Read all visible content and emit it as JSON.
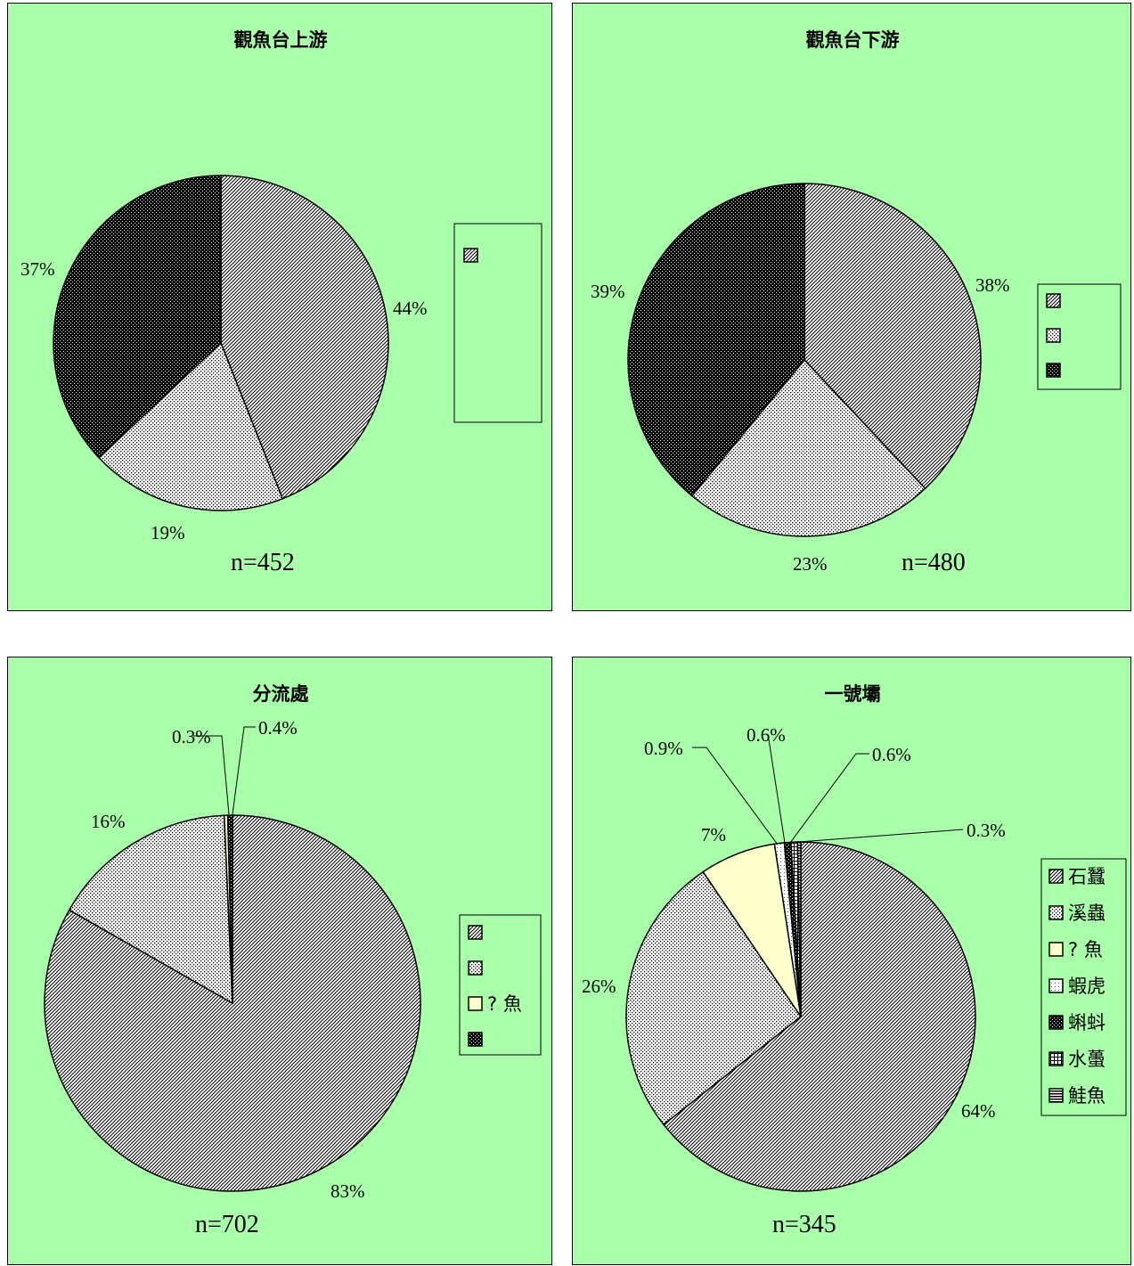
{
  "chart_data": [
    {
      "type": "pie",
      "title": "觀魚台上游",
      "n_label": "n=452",
      "slices": [
        {
          "name": "",
          "value": 44,
          "label": "44%",
          "pattern": "p-diag"
        },
        {
          "name": "",
          "value": 19,
          "label": "19%",
          "pattern": "p-dots"
        },
        {
          "name": "",
          "value": 37,
          "label": "37%",
          "pattern": "p-dark"
        }
      ],
      "legend": [
        {
          "label": "",
          "pattern": "p-diag"
        }
      ]
    },
    {
      "type": "pie",
      "title": "觀魚台下游",
      "n_label": "n=480",
      "slices": [
        {
          "name": "",
          "value": 38,
          "label": "38%",
          "pattern": "p-diag"
        },
        {
          "name": "",
          "value": 23,
          "label": "23%",
          "pattern": "p-dots"
        },
        {
          "name": "",
          "value": 39,
          "label": "39%",
          "pattern": "p-dark"
        }
      ],
      "legend": [
        {
          "label": "",
          "pattern": "p-diag"
        },
        {
          "label": "",
          "pattern": "p-dots"
        },
        {
          "label": "",
          "pattern": "p-dark"
        }
      ]
    },
    {
      "type": "pie",
      "title": "分流處",
      "n_label": "n=702",
      "slices": [
        {
          "name": "",
          "value": 83,
          "label": "83%",
          "pattern": "p-diag"
        },
        {
          "name": "",
          "value": 16,
          "label": "16%",
          "pattern": "p-dots"
        },
        {
          "name": "",
          "value": 0.3,
          "label": "0.3%",
          "pattern": "p-cream"
        },
        {
          "name": "",
          "value": 0.4,
          "label": "0.4%",
          "pattern": "p-dark"
        }
      ],
      "legend": [
        {
          "label": "",
          "pattern": "p-diag"
        },
        {
          "label": "",
          "pattern": "p-dots"
        },
        {
          "label": "? 魚",
          "pattern": "p-cream"
        },
        {
          "label": "",
          "pattern": "p-dark"
        }
      ]
    },
    {
      "type": "pie",
      "title": "一號壩",
      "n_label": "n=345",
      "slices": [
        {
          "name": "石蠶",
          "value": 64,
          "label": "64%",
          "pattern": "p-diag"
        },
        {
          "name": "溪蟲",
          "value": 26,
          "label": "26%",
          "pattern": "p-dots"
        },
        {
          "name": "? 魚",
          "value": 7,
          "label": "7%",
          "pattern": "p-cream"
        },
        {
          "name": "蝦虎",
          "value": 0.9,
          "label": "0.9%",
          "pattern": "p-light"
        },
        {
          "name": "蝌蚪",
          "value": 0.6,
          "label": "0.6%",
          "pattern": "p-dark"
        },
        {
          "name": "水蠆",
          "value": 0.6,
          "label": "0.6%",
          "pattern": "p-grid"
        },
        {
          "name": "鮭魚",
          "value": 0.3,
          "label": "0.3%",
          "pattern": "p-hstripe"
        }
      ],
      "legend": [
        {
          "label": "石蠶",
          "pattern": "p-diag"
        },
        {
          "label": "溪蟲",
          "pattern": "p-dots"
        },
        {
          "label": "? 魚",
          "pattern": "p-cream"
        },
        {
          "label": "蝦虎",
          "pattern": "p-light"
        },
        {
          "label": "蝌蚪",
          "pattern": "p-dark"
        },
        {
          "label": "水蠆",
          "pattern": "p-grid"
        },
        {
          "label": "鮭魚",
          "pattern": "p-hstripe"
        }
      ]
    }
  ]
}
